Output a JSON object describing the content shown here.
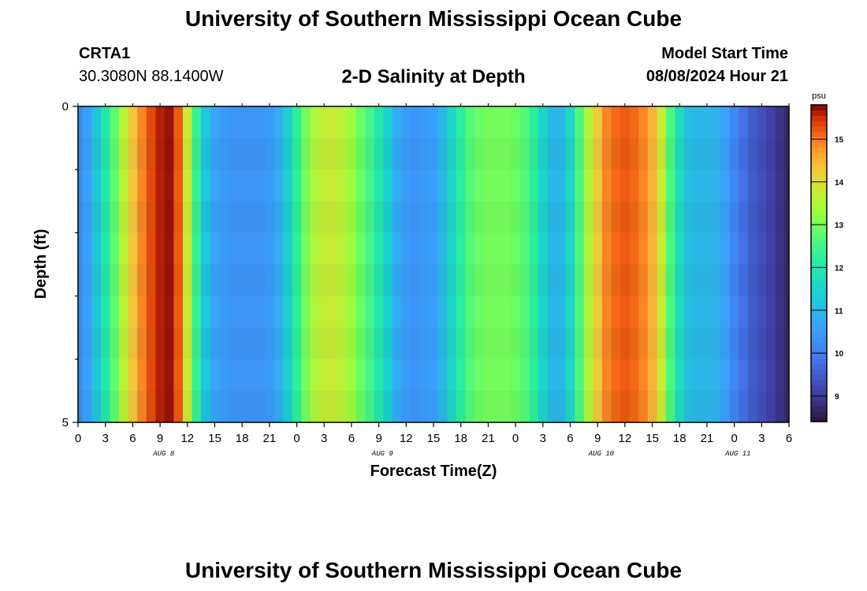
{
  "header": {
    "title": "University of Southern Mississippi Ocean Cube",
    "station_id": "CRTA1",
    "station_coords": "30.3080N  88.1400W",
    "plot_title": "2-D Salinity at Depth",
    "model_start_label": "Model Start Time",
    "model_start_value": "08/08/2024 Hour 21"
  },
  "footer": {
    "title": "University of Southern Mississippi Ocean Cube"
  },
  "chart_data": {
    "type": "heatmap",
    "title": "2-D Salinity at Depth",
    "xlabel": "Forecast Time(Z)",
    "ylabel": "Depth (ft)",
    "x_hours": [
      0,
      1,
      2,
      3,
      4,
      5,
      6,
      7,
      8,
      9,
      10,
      11,
      12,
      13,
      14,
      15,
      16,
      17,
      18,
      19,
      20,
      21,
      22,
      23,
      24,
      25,
      26,
      27,
      28,
      29,
      30,
      31,
      32,
      33,
      34,
      35,
      36,
      37,
      38,
      39,
      40,
      41,
      42,
      43,
      44,
      45,
      46,
      47,
      48,
      49,
      50,
      51,
      52,
      53,
      54,
      55,
      56,
      57,
      58,
      59,
      60,
      61,
      62,
      63,
      64,
      65,
      66,
      67,
      68,
      69,
      70,
      71,
      72,
      73,
      74,
      75,
      76,
      77,
      78
    ],
    "salinity_psu": [
      10.2,
      10.6,
      11.2,
      12.0,
      12.8,
      13.6,
      14.3,
      14.9,
      15.3,
      15.6,
      15.7,
      15.2,
      13.8,
      12.3,
      11.2,
      10.7,
      10.5,
      10.4,
      10.4,
      10.4,
      10.4,
      10.5,
      10.8,
      11.4,
      12.2,
      13.0,
      13.5,
      13.7,
      13.8,
      13.6,
      13.3,
      12.9,
      12.5,
      12.0,
      11.4,
      10.8,
      10.5,
      10.4,
      10.5,
      10.6,
      11.0,
      11.6,
      12.2,
      12.7,
      12.9,
      13.0,
      13.0,
      13.0,
      12.9,
      12.7,
      12.2,
      11.5,
      11.0,
      11.0,
      11.6,
      12.6,
      13.5,
      14.3,
      14.9,
      15.1,
      15.2,
      15.1,
      14.9,
      14.5,
      13.8,
      12.6,
      11.7,
      11.1,
      11.0,
      11.0,
      10.9,
      10.6,
      10.2,
      9.8,
      9.5,
      9.3,
      9.1,
      8.9,
      8.7
    ],
    "depth_range": [
      0,
      5
    ],
    "y_ticks": [
      0,
      5
    ],
    "x_tick_labels": [
      "0",
      "3",
      "6",
      "9",
      "12",
      "15",
      "18",
      "21",
      "0",
      "3",
      "6",
      "9",
      "12",
      "15",
      "18",
      "21",
      "0",
      "3",
      "6",
      "9",
      "12",
      "15",
      "18",
      "21",
      "0",
      "3",
      "6"
    ],
    "day_labels": [
      "AUG 8",
      "AUG 9",
      "AUG 10",
      "AUG 11"
    ],
    "colorbar": {
      "unit": "psu",
      "range": [
        8.4,
        15.8
      ],
      "ticks": [
        9,
        10,
        11,
        12,
        13,
        14,
        15
      ]
    }
  }
}
